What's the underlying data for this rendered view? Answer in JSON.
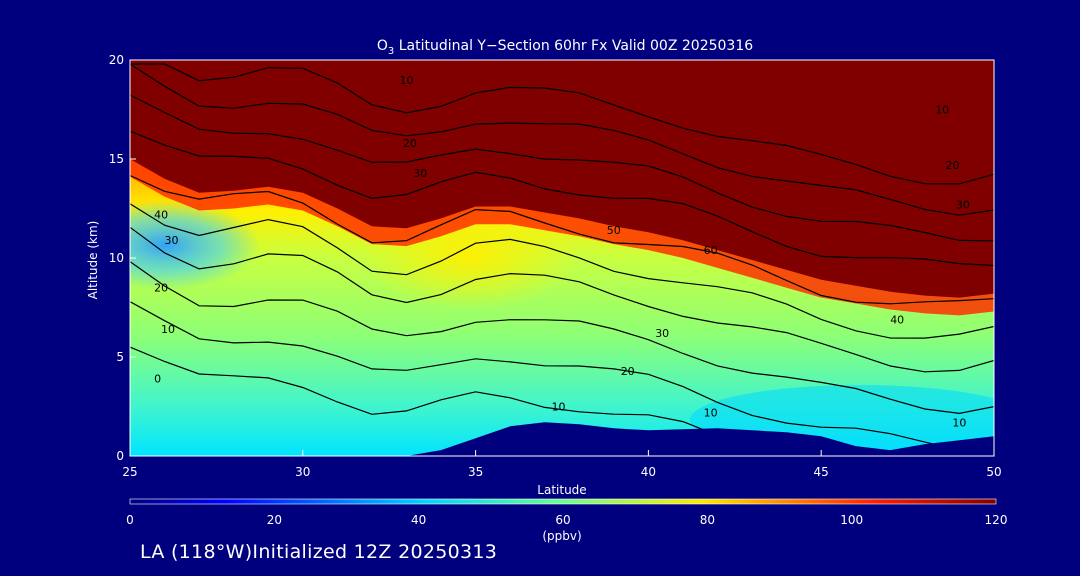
{
  "chart_data": {
    "type": "contour",
    "title_prefix": "O",
    "title_subscript": "3",
    "title_rest": " Latitudinal Y−Section 60hr  Fx Valid 00Z 20250316",
    "xlabel": "Latitude",
    "ylabel": "Altitude (km)",
    "xlim": [
      25,
      50
    ],
    "ylim": [
      0,
      20
    ],
    "x_ticks": [
      25,
      30,
      35,
      40,
      45,
      50
    ],
    "y_ticks": [
      0,
      5,
      10,
      15,
      20
    ],
    "x_tick_labels": [
      "25",
      "30",
      "35",
      "40",
      "45",
      "50"
    ],
    "y_tick_labels": [
      "0",
      "5",
      "10",
      "15",
      "20"
    ],
    "colorbar": {
      "range": [
        0,
        120
      ],
      "tick_values": [
        0,
        20,
        40,
        60,
        80,
        100,
        120
      ],
      "tick_labels": [
        "0",
        "20",
        "40",
        "60",
        "80",
        "100",
        "120"
      ],
      "unit": "(ppbv)"
    },
    "saturated_color_above": 120,
    "terrain_profile": [
      [
        25,
        0
      ],
      [
        30,
        0
      ],
      [
        32,
        0
      ],
      [
        33,
        0
      ],
      [
        34,
        0.3
      ],
      [
        35,
        0.9
      ],
      [
        36,
        1.5
      ],
      [
        37,
        1.7
      ],
      [
        38,
        1.6
      ],
      [
        39,
        1.4
      ],
      [
        40,
        1.3
      ],
      [
        41,
        1.35
      ],
      [
        42,
        1.4
      ],
      [
        43,
        1.3
      ],
      [
        44,
        1.2
      ],
      [
        45,
        1.0
      ],
      [
        46,
        0.5
      ],
      [
        47,
        0.3
      ],
      [
        48,
        0.6
      ],
      [
        49,
        0.8
      ],
      [
        50,
        1.0
      ]
    ],
    "stratosphere_boundary": [
      [
        25,
        15.0
      ],
      [
        26,
        14.0
      ],
      [
        27,
        13.3
      ],
      [
        28,
        13.4
      ],
      [
        29,
        13.6
      ],
      [
        30,
        13.3
      ],
      [
        31,
        12.5
      ],
      [
        32,
        11.6
      ],
      [
        33,
        11.5
      ],
      [
        34,
        12.0
      ],
      [
        35,
        12.6
      ],
      [
        36,
        12.6
      ],
      [
        37,
        12.3
      ],
      [
        38,
        12.0
      ],
      [
        39,
        11.6
      ],
      [
        40,
        11.3
      ],
      [
        41,
        10.9
      ],
      [
        42,
        10.4
      ],
      [
        43,
        9.9
      ],
      [
        44,
        9.4
      ],
      [
        45,
        8.9
      ],
      [
        46,
        8.6
      ],
      [
        47,
        8.3
      ],
      [
        48,
        8.1
      ],
      [
        49,
        8.0
      ],
      [
        50,
        8.2
      ]
    ],
    "contour_labels": [
      {
        "text": "10",
        "x": 41.8,
        "y": 2.0
      },
      {
        "text": "10",
        "x": 26.1,
        "y": 6.2
      },
      {
        "text": "0",
        "x": 25.8,
        "y": 3.7
      },
      {
        "text": "20",
        "x": 25.9,
        "y": 8.3
      },
      {
        "text": "30",
        "x": 26.2,
        "y": 10.7
      },
      {
        "text": "40",
        "x": 25.9,
        "y": 12.0
      },
      {
        "text": "30",
        "x": 40.4,
        "y": 6.0
      },
      {
        "text": "40",
        "x": 47.2,
        "y": 6.7
      },
      {
        "text": "20",
        "x": 39.4,
        "y": 4.1
      },
      {
        "text": "10",
        "x": 37.4,
        "y": 2.3
      },
      {
        "text": "10",
        "x": 49.0,
        "y": 1.5
      },
      {
        "text": "50",
        "x": 39.0,
        "y": 11.2
      },
      {
        "text": "60",
        "x": 41.8,
        "y": 10.2
      },
      {
        "text": "30",
        "x": 33.4,
        "y": 14.1
      },
      {
        "text": "20",
        "x": 33.1,
        "y": 15.6
      },
      {
        "text": "10",
        "x": 33.0,
        "y": 18.8
      },
      {
        "text": "10",
        "x": 48.5,
        "y": 17.3
      },
      {
        "text": "20",
        "x": 48.8,
        "y": 14.5
      },
      {
        "text": "30",
        "x": 49.1,
        "y": 12.5
      }
    ]
  },
  "footer": "LA (118°W)Initialized 12Z 20250313"
}
